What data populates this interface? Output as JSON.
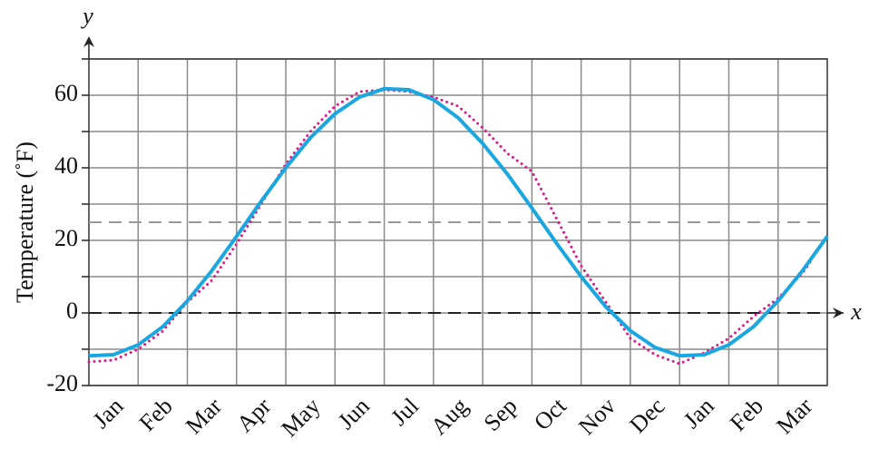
{
  "chart_data": {
    "type": "line",
    "xlabel": "x",
    "ylabel": "y",
    "ytitle": "Temperature (˚F)",
    "categories": [
      "Jan",
      "Feb",
      "Mar",
      "Apr",
      "May",
      "Jun",
      "Jul",
      "Aug",
      "Sep",
      "Oct",
      "Nov",
      "Dec",
      "Jan",
      "Feb",
      "Mar"
    ],
    "xlim": [
      0,
      15
    ],
    "ylim": [
      -20,
      70
    ],
    "yticks": [
      -20,
      0,
      20,
      40,
      60
    ],
    "minor_yticks": [
      -10,
      10,
      30,
      50,
      70
    ],
    "grid": true,
    "grid_color": "#8a8a8a",
    "reference_lines": [
      {
        "value": 25,
        "color": "#9a9a9a"
      },
      {
        "value": 0,
        "color": "#222222"
      }
    ],
    "series": [
      {
        "color": "#1aa7e0",
        "style": "solid",
        "x": [
          0,
          0.5,
          1,
          1.5,
          2,
          2.5,
          3,
          3.5,
          4,
          4.5,
          5,
          5.5,
          6,
          6.5,
          7,
          7.5,
          8,
          8.5,
          9,
          9.5,
          10,
          10.5,
          11,
          11.5,
          12,
          12.5,
          13,
          13.5,
          14,
          14.5,
          15
        ],
        "values": [
          -11.8,
          -11.5,
          -8.8,
          -3.8,
          3.3,
          11.7,
          21.1,
          30.8,
          40.0,
          48.3,
          54.9,
          59.5,
          61.8,
          61.5,
          58.8,
          53.8,
          46.7,
          38.3,
          28.9,
          19.2,
          10.0,
          1.7,
          -4.9,
          -9.5,
          -11.8,
          -11.5,
          -8.8,
          -3.8,
          3.3,
          11.7,
          21.1
        ]
      },
      {
        "color": "#e0148c",
        "style": "dotted",
        "x": [
          0,
          0.5,
          1,
          1.5,
          2,
          2.5,
          3,
          3.5,
          4,
          4.5,
          5,
          5.5,
          6,
          6.5,
          7,
          7.5,
          8,
          8.5,
          9,
          9.5,
          10,
          10.5,
          11,
          11.5,
          12,
          12.5,
          13,
          13.5,
          14,
          14.5,
          14.7
        ],
        "values": [
          -13.5,
          -13,
          -10,
          -5,
          3,
          9,
          19,
          30,
          41,
          50,
          57,
          61,
          61.5,
          61,
          59.5,
          57,
          51,
          44,
          39,
          26,
          13,
          3,
          -7,
          -11.5,
          -14,
          -11,
          -7,
          -1,
          4,
          11,
          15
        ]
      }
    ]
  }
}
